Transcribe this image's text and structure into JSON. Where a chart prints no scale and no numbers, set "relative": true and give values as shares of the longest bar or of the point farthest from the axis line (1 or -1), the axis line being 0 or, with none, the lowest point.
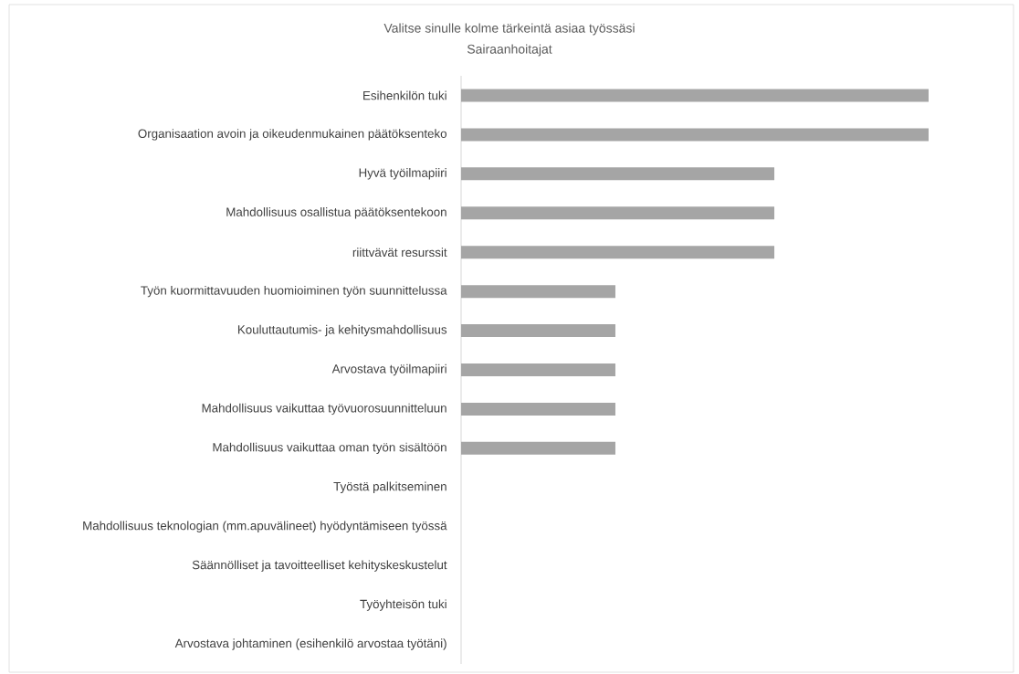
{
  "chart_data": {
    "type": "bar",
    "orientation": "horizontal",
    "relative": true,
    "title": "Valitse sinulle kolme tärkeintä asiaa työssäsi",
    "subtitle": "Sairaanhoitajat",
    "categories": [
      "Esihenkilön tuki",
      "Organisaation avoin ja oikeudenmukainen päätöksenteko",
      "Hyvä työilmapiiri",
      "Mahdollisuus osallistua päätöksentekoon",
      "riittvävät resurssit",
      "Työn kuormittavuuden huomioiminen työn suunnittelussa",
      "Kouluttautumis- ja kehitysmahdollisuus",
      "Arvostava työilmapiiri",
      "Mahdollisuus vaikuttaa työvuorosuunnitteluun",
      "Mahdollisuus vaikuttaa oman työn sisältöön",
      "Työstä palkitseminen",
      "Mahdollisuus teknologian (mm.apuvälineet) hyödyntämiseen työssä",
      "Säännölliset ja tavoitteelliset kehityskeskustelut",
      "Työyhteisön tuki",
      "Arvostava johtaminen (esihenkilö arvostaa työtäni)"
    ],
    "values": [
      1,
      1,
      0.67,
      0.67,
      0.67,
      0.33,
      0.33,
      0.33,
      0.33,
      0.33,
      0,
      0,
      0,
      0,
      0
    ],
    "color": "#a5a5a5"
  }
}
